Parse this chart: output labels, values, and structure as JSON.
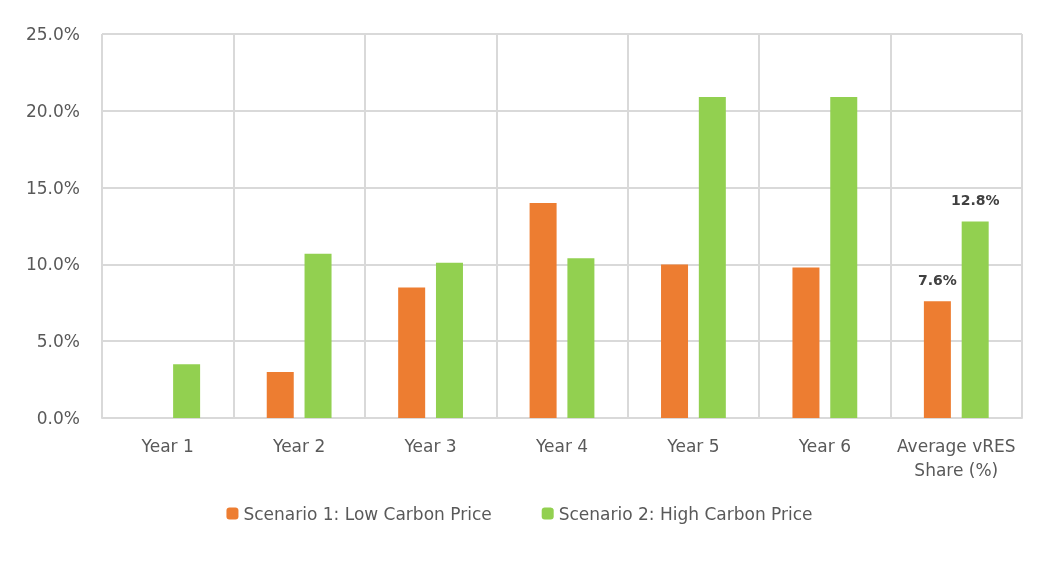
{
  "chart_data": {
    "type": "bar",
    "categories": [
      "Year 1",
      "Year 2",
      "Year 3",
      "Year 4",
      "Year 5",
      "Year 6",
      "Average vRES\nShare (%)"
    ],
    "series": [
      {
        "name": "Scenario 1: Low Carbon Price",
        "color": "#ed7d31",
        "values": [
          null,
          3.0,
          8.5,
          14.0,
          10.0,
          9.8,
          7.6
        ],
        "value_labels": [
          null,
          null,
          null,
          null,
          null,
          null,
          "7.6%"
        ]
      },
      {
        "name": "Scenario 2: High Carbon Price",
        "color": "#92d050",
        "values": [
          3.5,
          10.7,
          10.1,
          10.4,
          20.9,
          20.9,
          12.8
        ],
        "value_labels": [
          null,
          null,
          null,
          null,
          null,
          null,
          "12.8%"
        ]
      }
    ],
    "ylim": [
      0,
      25
    ],
    "yticks": [
      {
        "value": 0,
        "label": "0.0%"
      },
      {
        "value": 5,
        "label": "5.0%"
      },
      {
        "value": 10,
        "label": "10.0%"
      },
      {
        "value": 15,
        "label": "15.0%"
      },
      {
        "value": 20,
        "label": "20.0%"
      },
      {
        "value": 25,
        "label": "25.0%"
      }
    ],
    "grid": true,
    "legend": "bottom"
  }
}
